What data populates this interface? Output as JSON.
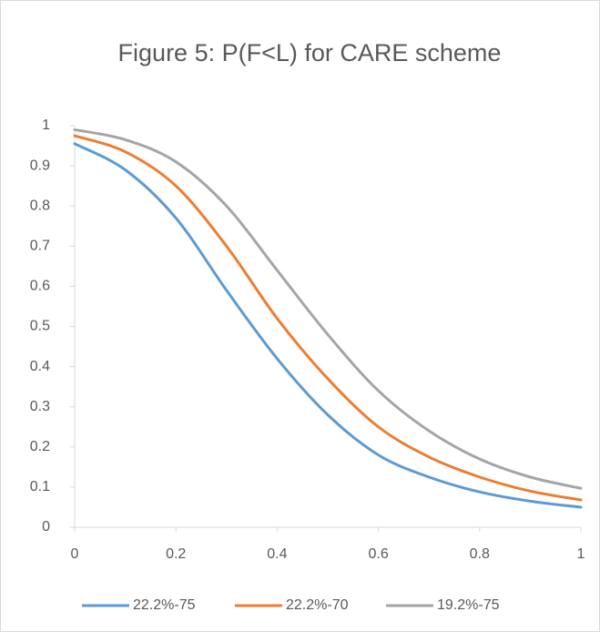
{
  "chart_data": {
    "type": "line",
    "title": "Figure 5: P(F<L) for CARE scheme",
    "x": [
      0,
      0.1,
      0.2,
      0.3,
      0.4,
      0.5,
      0.6,
      0.7,
      0.8,
      0.9,
      1
    ],
    "series": [
      {
        "name": "22.2%-75",
        "color": "#5b9bd5",
        "values": [
          0.955,
          0.89,
          0.77,
          0.59,
          0.42,
          0.28,
          0.18,
          0.125,
          0.088,
          0.065,
          0.05
        ]
      },
      {
        "name": "22.2%-70",
        "color": "#ed7d31",
        "values": [
          0.975,
          0.935,
          0.85,
          0.7,
          0.52,
          0.37,
          0.25,
          0.175,
          0.125,
          0.09,
          0.068
        ]
      },
      {
        "name": "19.2%-75",
        "color": "#a5a5a5",
        "values": [
          0.99,
          0.965,
          0.91,
          0.8,
          0.64,
          0.48,
          0.34,
          0.24,
          0.17,
          0.125,
          0.097
        ]
      }
    ],
    "xlim": [
      0,
      1
    ],
    "xticks": [
      0,
      0.2,
      0.4,
      0.6,
      0.8,
      1
    ],
    "ylim": [
      0,
      1
    ],
    "yticks": [
      0,
      0.1,
      0.2,
      0.3,
      0.4,
      0.5,
      0.6,
      0.7,
      0.8,
      0.9,
      1
    ],
    "grid": false,
    "legend": "bottom"
  }
}
